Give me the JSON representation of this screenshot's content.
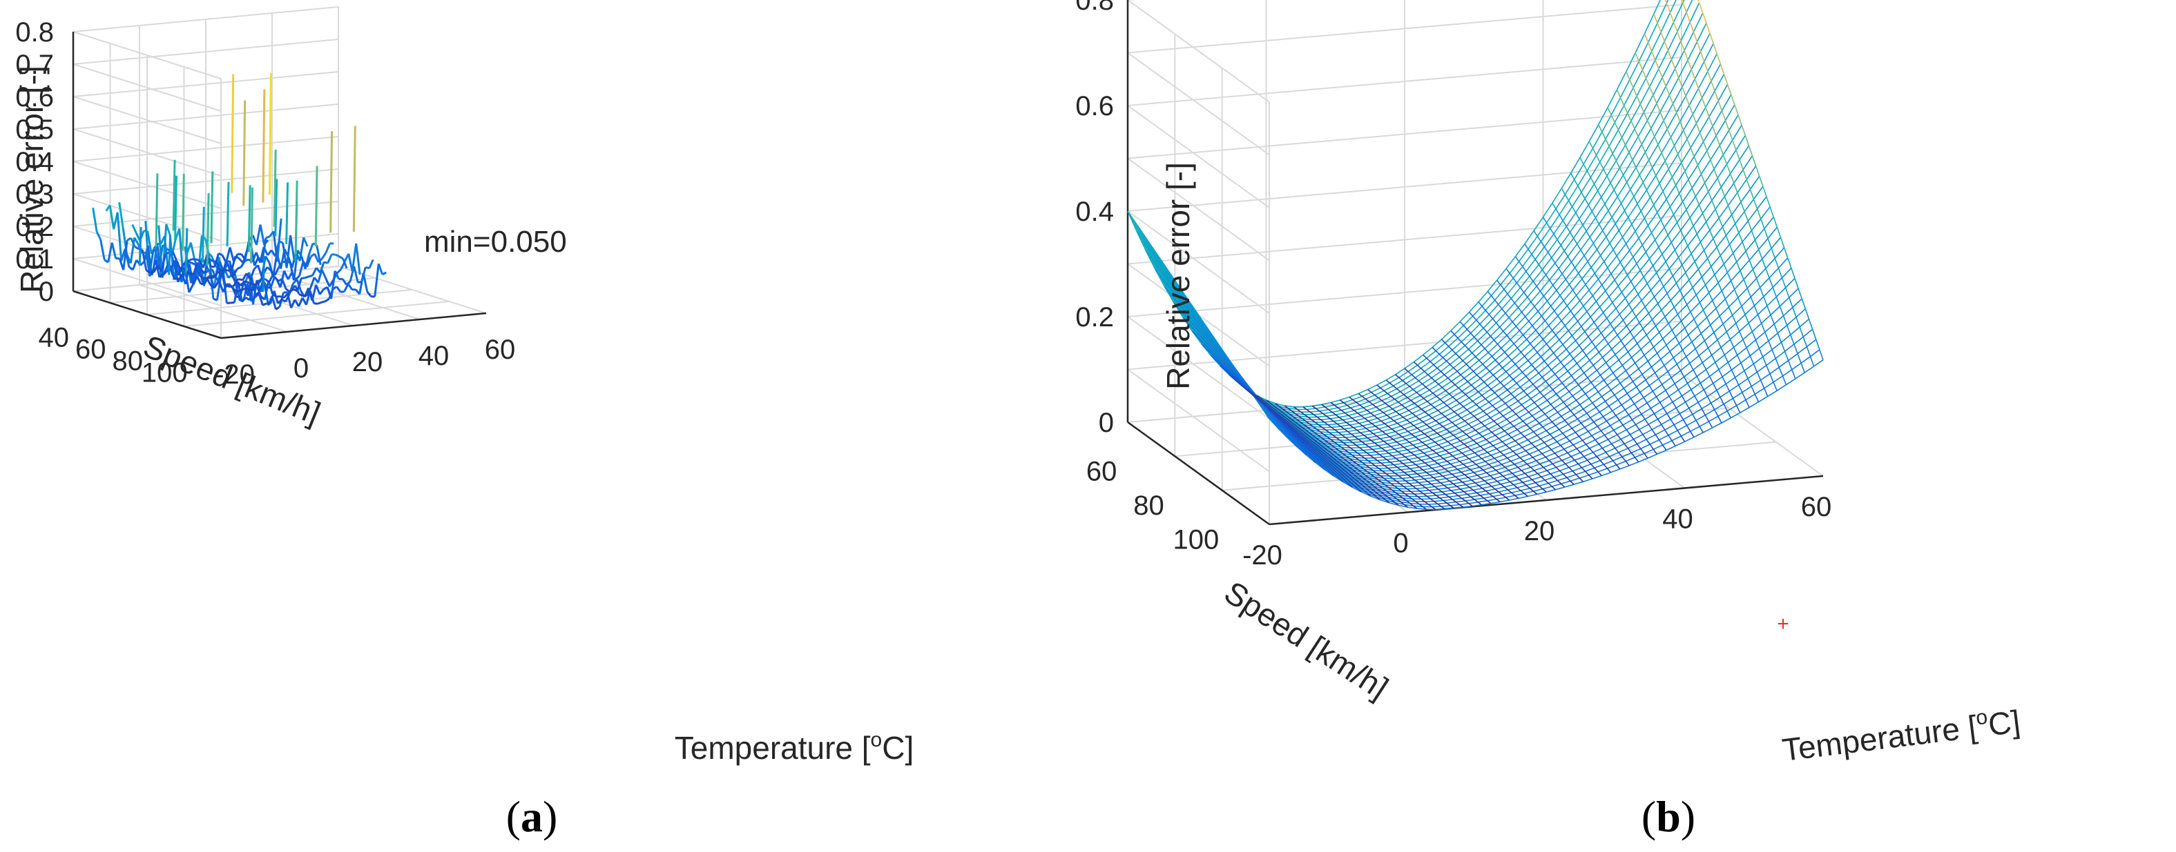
{
  "chart_data": [
    {
      "panel": "a",
      "type": "surface3d-mesh-noisy",
      "panel_label": "a",
      "zlabel": "Relative error [-]",
      "ylabel": "Speed [km/h]",
      "xlabel_prefix": "Temperature [",
      "xlabel_sup": "o",
      "xlabel_suffix": "C]",
      "x_ticks": [
        "-20",
        "0",
        "20",
        "40",
        "60"
      ],
      "y_ticks": [
        "40",
        "60",
        "80",
        "100"
      ],
      "z_ticks": [
        "0",
        "0.1",
        "0.2",
        "0.3",
        "0.4",
        "0.5",
        "0.6",
        "0.7",
        "0.8"
      ],
      "xlim": [
        -20,
        60
      ],
      "ylim": [
        30,
        100
      ],
      "zlim": [
        0,
        0.8
      ],
      "annotation": "min=0.050",
      "min_value": 0.05,
      "colormap": "parula"
    },
    {
      "panel": "b",
      "type": "surface3d-mesh",
      "panel_label": "b",
      "zlabel": "Relative error [-]",
      "ylabel": "Speed [km/h]",
      "xlabel_prefix": "Temperature [",
      "xlabel_sup": "o",
      "xlabel_suffix": "C]",
      "x_ticks": [
        "-20",
        "0",
        "20",
        "40",
        "60"
      ],
      "y_ticks": [
        "60",
        "80",
        "100"
      ],
      "z_ticks": [
        "0",
        "0.2",
        "0.4",
        "0.6",
        "0.8"
      ],
      "xlim": [
        -20,
        60
      ],
      "ylim": [
        50,
        100
      ],
      "zlim": [
        0,
        0.8
      ],
      "corner_values": {
        "t_min_speed_min": 0.4,
        "t_max_speed_min": 0.8,
        "t_max_speed_max": 0.22,
        "t_min_speed_max": 0.2
      },
      "min_value": 0.0,
      "min_marker": "+",
      "colormap": "parula"
    }
  ]
}
